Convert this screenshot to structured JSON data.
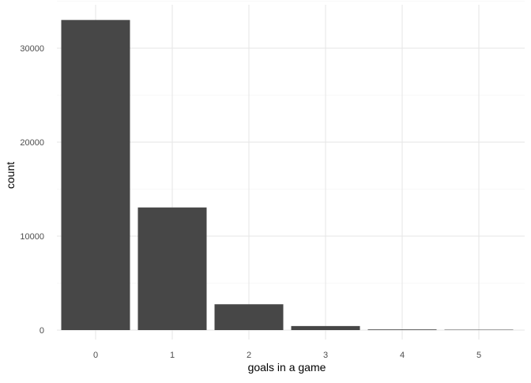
{
  "chart_data": {
    "type": "bar",
    "categories": [
      "0",
      "1",
      "2",
      "3",
      "4",
      "5"
    ],
    "values": [
      33000,
      13050,
      2750,
      430,
      70,
      8
    ],
    "xlabel": "goals in a game",
    "ylabel": "count",
    "ylim": [
      0,
      35000
    ],
    "yticks": [
      0,
      10000,
      20000,
      30000
    ],
    "ytick_labels": [
      "0",
      "10000",
      "20000",
      "30000"
    ],
    "grid": true,
    "bar_color": "#474747",
    "grid_major_color": "#e6e6e6",
    "grid_minor_color": "#f2f2f2",
    "theme": "minimal"
  }
}
